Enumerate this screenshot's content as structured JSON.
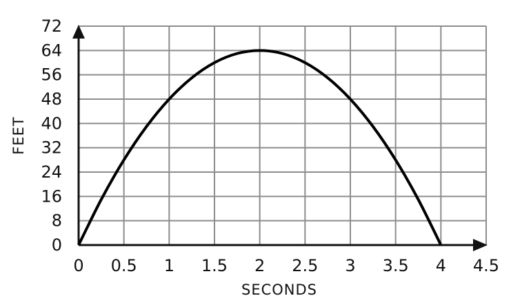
{
  "chart_data": {
    "type": "line",
    "title": "",
    "xlabel": "SECONDS",
    "ylabel": "FEET",
    "xlim": [
      0,
      4.5
    ],
    "ylim": [
      0,
      72
    ],
    "grid": true,
    "x_ticks": [
      "0",
      "0.5",
      "1",
      "1.5",
      "2",
      "2.5",
      "3",
      "3.5",
      "4",
      "4.5"
    ],
    "y_ticks": [
      "0",
      "8",
      "16",
      "24",
      "32",
      "40",
      "48",
      "56",
      "64",
      "72"
    ],
    "series": [
      {
        "x": [
          0,
          0.25,
          0.5,
          0.75,
          1,
          1.25,
          1.5,
          1.75,
          2,
          2.25,
          2.5,
          2.75,
          3,
          3.25,
          3.5,
          3.75,
          4
        ],
        "y": [
          0,
          15,
          28,
          39,
          48,
          55,
          60,
          63,
          64,
          63,
          60,
          55,
          48,
          39,
          28,
          15,
          0
        ],
        "color": "#000000"
      }
    ]
  }
}
